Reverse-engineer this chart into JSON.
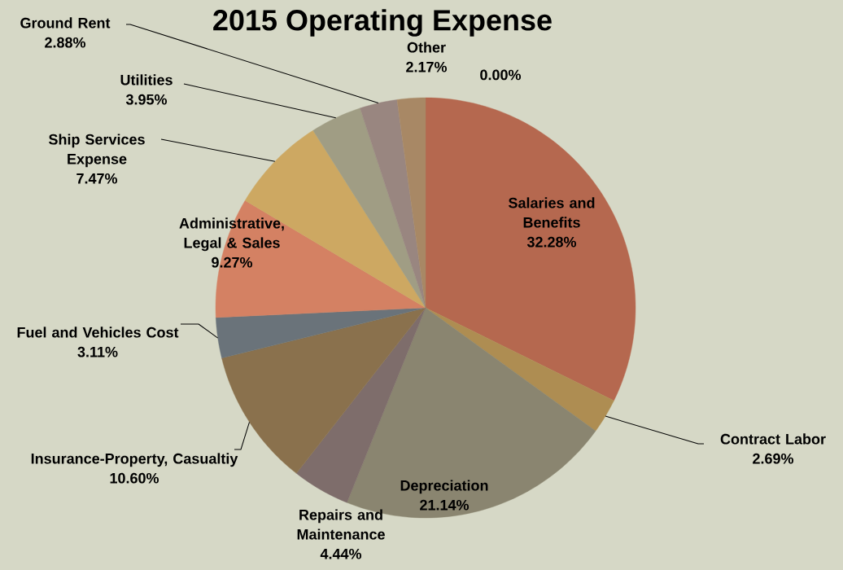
{
  "chart_data": {
    "type": "pie",
    "title": "2015 Operating Expense",
    "categories": [
      "Salaries and Benefits",
      "Contract Labor",
      "Depreciation",
      "Repairs and Maintenance",
      "Insurance-Property, Casualtiy",
      "Fuel and Vehicles Cost",
      "Administrative, Legal  & Sales",
      "Ship Services Expense",
      "Utilities",
      "Ground Rent",
      "Other",
      null
    ],
    "values": [
      32.28,
      2.69,
      21.14,
      4.44,
      10.6,
      3.11,
      9.27,
      7.47,
      3.95,
      2.88,
      2.17,
      0
    ],
    "value_labels": [
      "32.28%",
      "2.69%",
      "21.14%",
      "4.44%",
      "10.60%",
      "3.11%",
      "9.27%",
      "7.47%",
      "3.95%",
      "2.88%",
      "2.17%",
      "0.00%"
    ],
    "colors": [
      "#b5684f",
      "#ae8d52",
      "#8a8570",
      "#7e6d6b",
      "#8a714d",
      "#6a737a",
      "#d48163",
      "#cda862",
      "#a09d84",
      "#998680",
      "#a88865",
      "#a88865"
    ]
  }
}
